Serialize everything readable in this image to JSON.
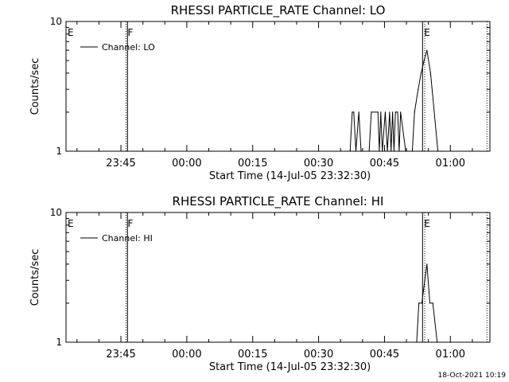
{
  "footer": "18-Oct-2021 10:19",
  "chart_data": [
    {
      "type": "line",
      "title": "RHESSI PARTICLE_RATE Channel: LO",
      "xlabel": "Start Time (14-Jul-05 23:32:30)",
      "ylabel": "Counts/sec",
      "yscale": "log",
      "ylim": [
        1,
        10
      ],
      "y_tick_labels": [
        "1",
        "10"
      ],
      "x_tick_labels": [
        "23:45",
        "00:00",
        "00:15",
        "00:30",
        "00:45",
        "01:00"
      ],
      "legend": {
        "position": "top-left",
        "label": "Channel: LO"
      },
      "markers": [
        {
          "label": "E",
          "time": "23:32:30",
          "style": "dotted"
        },
        {
          "label": "F",
          "time": "23:46:10",
          "style": "dotted"
        },
        {
          "label": "",
          "time": "23:46:30",
          "style": "solid"
        },
        {
          "label": "E",
          "time": "00:53:40",
          "style": "solid"
        },
        {
          "label": "",
          "time": "00:54:10",
          "style": "dotted"
        },
        {
          "label": "",
          "time": "01:08:20",
          "style": "dotted"
        }
      ],
      "series": [
        {
          "x": [
            "00:37:10",
            "00:37:40",
            "00:38:00",
            "00:38:30",
            "00:39:10",
            "00:39:40",
            "00:41:30",
            "00:42:00",
            "00:43:30",
            "00:43:50",
            "00:44:10",
            "00:44:30",
            "00:45:10",
            "00:45:40",
            "00:46:10",
            "00:46:30",
            "00:46:50",
            "00:47:10",
            "00:47:30",
            "00:48:00",
            "00:48:20",
            "00:48:40",
            "00:49:50",
            "00:50:20",
            "00:51:20",
            "00:51:50",
            "00:52:40",
            "00:53:20",
            "00:54:00",
            "00:54:40",
            "00:55:30",
            "00:56:20",
            "00:57:10",
            "00:58:00"
          ],
          "values": [
            1,
            2,
            2,
            1,
            2,
            1,
            1,
            2,
            2,
            1,
            2,
            1,
            2,
            1,
            2,
            1,
            2,
            1,
            2,
            2,
            1,
            2,
            1,
            1,
            1,
            2,
            3,
            4,
            5,
            6,
            4,
            2,
            1,
            1
          ]
        }
      ]
    },
    {
      "type": "line",
      "title": "RHESSI PARTICLE_RATE Channel: HI",
      "xlabel": "Start Time (14-Jul-05 23:32:30)",
      "ylabel": "Counts/sec",
      "yscale": "log",
      "ylim": [
        1,
        10
      ],
      "y_tick_labels": [
        "1",
        "10"
      ],
      "x_tick_labels": [
        "23:45",
        "00:00",
        "00:15",
        "00:30",
        "00:45",
        "01:00"
      ],
      "legend": {
        "position": "top-left",
        "label": "Channel: HI"
      },
      "markers": [
        {
          "label": "E",
          "time": "23:32:30",
          "style": "dotted"
        },
        {
          "label": "F",
          "time": "23:46:10",
          "style": "dotted"
        },
        {
          "label": "",
          "time": "23:46:30",
          "style": "solid"
        },
        {
          "label": "E",
          "time": "00:53:40",
          "style": "solid"
        },
        {
          "label": "",
          "time": "00:54:10",
          "style": "dotted"
        },
        {
          "label": "",
          "time": "01:08:20",
          "style": "dotted"
        }
      ],
      "series": [
        {
          "x": [
            "00:52:20",
            "00:52:50",
            "00:53:30",
            "00:54:10",
            "00:54:40",
            "00:55:20",
            "00:56:00",
            "00:57:00"
          ],
          "values": [
            1,
            2,
            2,
            3,
            4,
            2,
            2,
            1
          ]
        }
      ]
    }
  ]
}
